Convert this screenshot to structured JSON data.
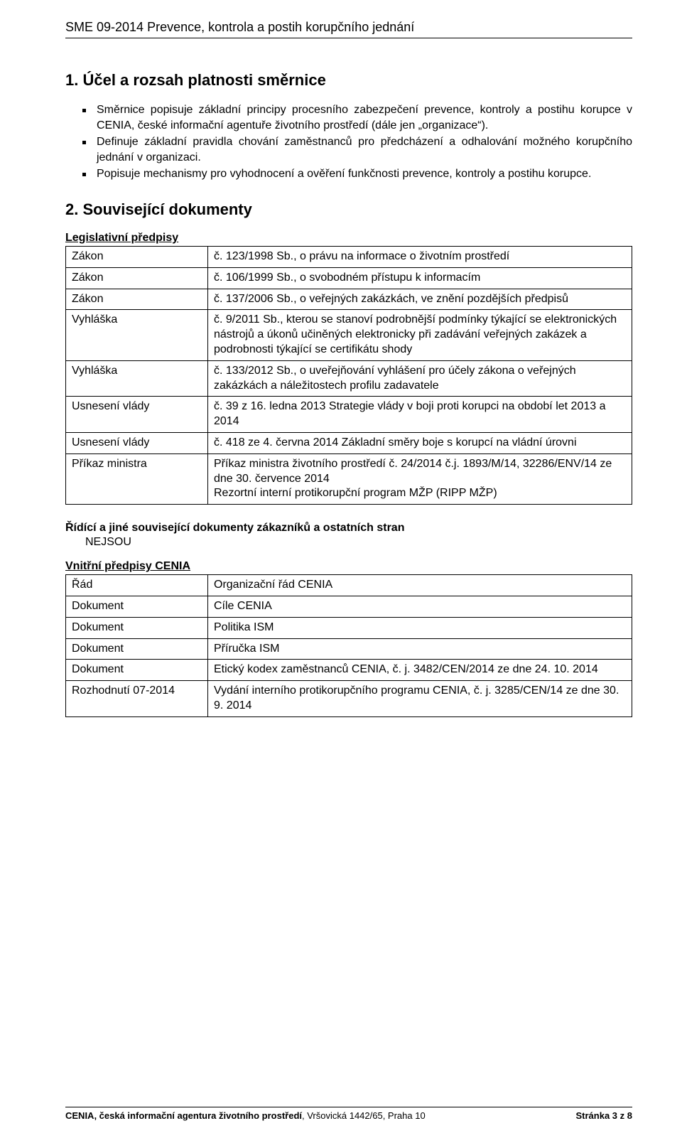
{
  "header": {
    "doc_title": "SME 09-2014 Prevence, kontrola a postih korupčního jednání"
  },
  "section1": {
    "title": "1. Účel a rozsah platnosti směrnice",
    "bullets": [
      "Směrnice popisuje základní principy procesního zabezpečení prevence, kontroly a postihu korupce v CENIA, české informační agentuře životního prostředí (dále jen „organizace“).",
      "Definuje základní pravidla chování zaměstnanců pro předcházení a odhalování možného korupčního jednání v organizaci.",
      "Popisuje mechanismy pro vyhodnocení a ověření funkčnosti prevence, kontroly a postihu korupce."
    ]
  },
  "section2": {
    "title": "2. Související dokumenty",
    "legislative_heading": "Legislativní předpisy",
    "legislative_rows": [
      {
        "type": "Zákon",
        "desc": "č. 123/1998 Sb., o právu na informace o životním prostředí"
      },
      {
        "type": "Zákon",
        "desc": "č. 106/1999 Sb., o svobodném přístupu k informacím"
      },
      {
        "type": "Zákon",
        "desc": "č. 137/2006 Sb., o veřejných zakázkách, ve znění pozdějších předpisů"
      },
      {
        "type": "Vyhláška",
        "desc": "č. 9/2011 Sb., kterou se stanoví podrobnější podmínky týkající se elektronických nástrojů a úkonů učiněných elektronicky při zadávání veřejných zakázek a podrobnosti týkající se certifikátu shody"
      },
      {
        "type": "Vyhláška",
        "desc": "č. 133/2012 Sb., o uveřejňování vyhlášení pro účely zákona o veřejných zakázkách a náležitostech profilu zadavatele"
      },
      {
        "type": "Usnesení vlády",
        "desc": "č. 39 z 16. ledna 2013 Strategie vlády v boji proti korupci na období let 2013 a 2014"
      },
      {
        "type": "Usnesení vlády",
        "desc": "č. 418 ze 4. června 2014 Základní směry boje s korupcí na vládní úrovni"
      },
      {
        "type": "Příkaz ministra",
        "desc": "Příkaz ministra životního prostředí č. 24/2014 č.j. 1893/M/14, 32286/ENV/14 ze dne 30. července 2014\nRezortní interní protikorupční program MŽP (RIPP MŽP)"
      }
    ],
    "managing_heading": "Řídící a jiné související dokumenty zákazníků a ostatních stran",
    "managing_value": "NEJSOU",
    "internal_heading": "Vnitřní předpisy CENIA",
    "internal_rows": [
      {
        "type": "Řád",
        "desc": "Organizační řád CENIA"
      },
      {
        "type": "Dokument",
        "desc": "Cíle CENIA"
      },
      {
        "type": "Dokument",
        "desc": "Politika ISM"
      },
      {
        "type": "Dokument",
        "desc": "Příručka ISM"
      },
      {
        "type": "Dokument",
        "desc": "Etický kodex zaměstnanců CENIA, č. j. 3482/CEN/2014 ze dne 24. 10. 2014"
      },
      {
        "type": "Rozhodnutí 07-2014",
        "desc": "Vydání interního protikorupčního programu CENIA, č.  j. 3285/CEN/14 ze dne 30. 9. 2014"
      }
    ]
  },
  "footer": {
    "org_bold": "CENIA, česká informační agentura životního prostředí",
    "org_rest": ", Vršovická 1442/65, Praha 10",
    "page_label": "Stránka 3 z 8"
  }
}
